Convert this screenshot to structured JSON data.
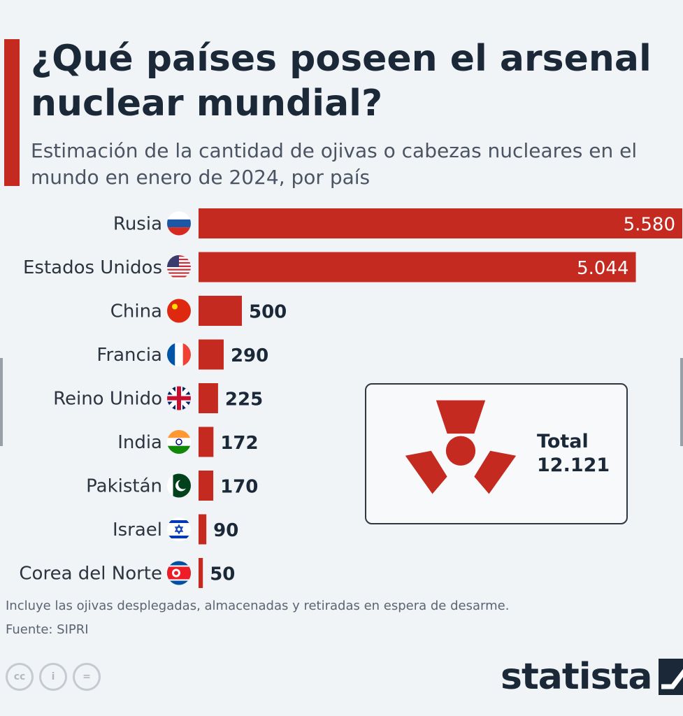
{
  "title": "¿Qué países poseen el arsenal nuclear mundial?",
  "subtitle": "Estimación de la cantidad de ojivas o cabezas nucleares en el mundo en enero de 2024, por país",
  "chart_data": {
    "type": "bar",
    "orientation": "horizontal",
    "title": "¿Qué países poseen el arsenal nuclear mundial?",
    "subtitle": "Estimación de la cantidad de ojivas o cabezas nucleares en el mundo en enero de 2024, por país",
    "categories": [
      "Rusia",
      "Estados Unidos",
      "China",
      "Francia",
      "Reino Unido",
      "India",
      "Pakistán",
      "Israel",
      "Corea del Norte"
    ],
    "values": [
      5580,
      5044,
      500,
      290,
      225,
      172,
      170,
      90,
      50
    ],
    "value_labels": [
      "5.580",
      "5.044",
      "500",
      "290",
      "225",
      "172",
      "170",
      "90",
      "50"
    ],
    "flag_icons": [
      "russia-flag-icon",
      "usa-flag-icon",
      "china-flag-icon",
      "france-flag-icon",
      "uk-flag-icon",
      "india-flag-icon",
      "pakistan-flag-icon",
      "israel-flag-icon",
      "north-korea-flag-icon"
    ],
    "bar_color": "#c42a1f",
    "xlim": [
      0,
      5580
    ],
    "grid": false,
    "legend": "none"
  },
  "total": {
    "label": "Total",
    "value": "12.121",
    "icon": "radiation-icon"
  },
  "note": "Incluye las ojivas desplegadas, almacenadas y retiradas en espera de desarme.",
  "source": "Fuente: SIPRI",
  "license_icons": [
    "cc-icon",
    "by-icon",
    "nd-icon"
  ],
  "license_text": [
    "cc",
    "i",
    "="
  ],
  "brand": "statista",
  "colors": {
    "accent": "#c42a1f",
    "text": "#1b2838",
    "background": "#f1f4f7"
  }
}
